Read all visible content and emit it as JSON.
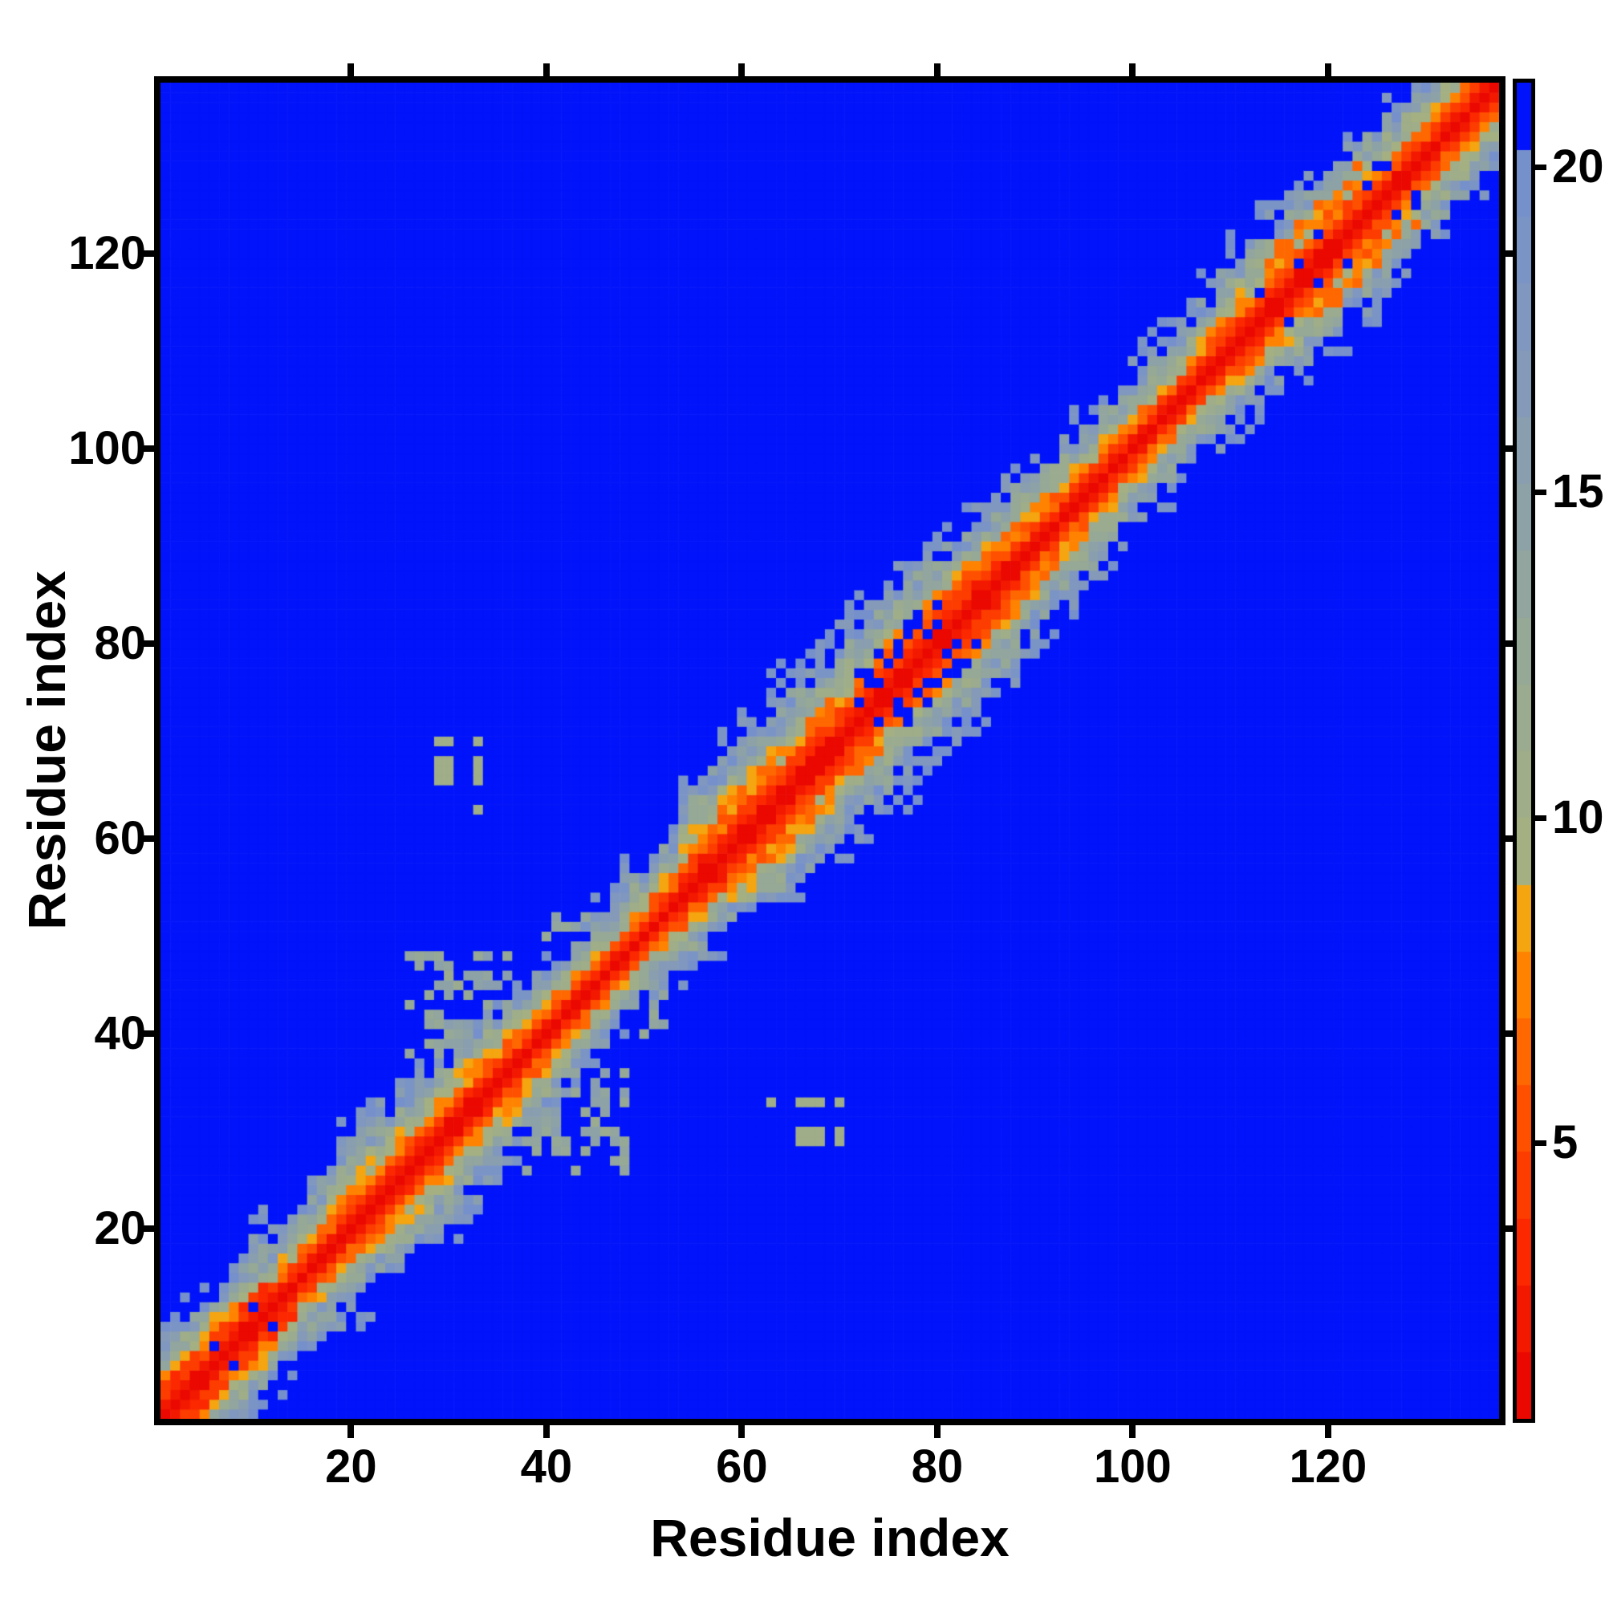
{
  "figure": {
    "background_color": "#ffffff",
    "text_color": "#000000",
    "frame_color": "#000000"
  },
  "chart_data": {
    "type": "heatmap",
    "title": "",
    "xlabel": "Residue index",
    "ylabel": "Residue index",
    "n_residues": 137,
    "axis_range": [
      1,
      137
    ],
    "x_ticks": [
      20,
      40,
      60,
      80,
      100,
      120
    ],
    "y_ticks": [
      20,
      40,
      60,
      80,
      100,
      120
    ],
    "grid": false,
    "legend_position": "colorbar-right",
    "colorbar": {
      "ticks": [
        5,
        10,
        15,
        20
      ],
      "vmin": 0.75,
      "vmax": 21.3,
      "levels": 20
    },
    "colors": {
      "high_distance_background": "#0013fa",
      "diagonal_low": "#e60000",
      "near_diagonal_orange": "#ff8800",
      "mid_sage": "#a3af84",
      "outer_slate": "#7f9abc"
    },
    "colormap_stops": [
      [
        0.75,
        "#e60000"
      ],
      [
        3.2,
        "#fb2600"
      ],
      [
        5.6,
        "#ff5400"
      ],
      [
        7.3,
        "#ff7f00"
      ],
      [
        8.45,
        "#ffa300"
      ],
      [
        8.5,
        "#a9b37c"
      ],
      [
        11.0,
        "#9dac8b"
      ],
      [
        14.0,
        "#90a4a1"
      ],
      [
        17.0,
        "#8399bb"
      ],
      [
        19.9,
        "#7590cd"
      ],
      [
        20.0,
        "#0013fa"
      ],
      [
        21.3,
        "#0013fa"
      ]
    ],
    "matrix_model": {
      "symmetric": true,
      "diagonal_value": 0,
      "clamp_max": 21.3,
      "rate_segments": [
        [
          1,
          11,
          2.1
        ],
        [
          12,
          18,
          2.7
        ],
        [
          19,
          34,
          2.0
        ],
        [
          35,
          43,
          2.45
        ],
        [
          44,
          53,
          3.1
        ],
        [
          54,
          88,
          1.75
        ],
        [
          89,
          97,
          2.3
        ],
        [
          98,
          108,
          2.6
        ],
        [
          109,
          128,
          2.0
        ],
        [
          129,
          137,
          2.35
        ]
      ],
      "noise_base": 0.78,
      "noise_amp": 0.55,
      "clusters": [
        {
          "a": [
            1,
            11
          ],
          "delta": [
            3,
            3
          ],
          "value": 4.0,
          "p": 0.75
        },
        {
          "a": [
            1,
            11
          ],
          "delta": [
            2,
            2
          ],
          "value": 21.3,
          "p": 0.3
        },
        {
          "a": [
            26,
            36
          ],
          "b": [
            38,
            48
          ],
          "value": 13.5,
          "p": 0.38
        },
        {
          "a": [
            40,
            46
          ],
          "b": [
            44,
            52
          ],
          "value": 14.0,
          "p": 0.3
        },
        {
          "a": [
            58,
            70
          ],
          "delta": [
            4,
            5
          ],
          "value": 7.2,
          "p": 0.5
        },
        {
          "a": [
            72,
            80
          ],
          "delta": [
            2,
            5
          ],
          "value": 21.3,
          "p": 0.4
        },
        {
          "a": [
            84,
            90
          ],
          "delta": [
            2,
            4
          ],
          "value": 6.9,
          "p": 0.5
        },
        {
          "a": [
            109,
            126
          ],
          "delta": [
            2,
            4
          ],
          "value": 21.3,
          "p": 0.18
        },
        {
          "a": [
            114,
            123
          ],
          "delta": [
            4,
            6
          ],
          "value": 6.6,
          "p": 0.5
        }
      ],
      "contact_pairs": [
        [
          29,
          66
        ],
        [
          29,
          67
        ],
        [
          29,
          68
        ],
        [
          29,
          70
        ],
        [
          30,
          66
        ],
        [
          30,
          67
        ],
        [
          30,
          68
        ],
        [
          30,
          70
        ],
        [
          33,
          63
        ],
        [
          33,
          66
        ],
        [
          33,
          67
        ],
        [
          33,
          68
        ],
        [
          33,
          70
        ]
      ],
      "contact_value": 10.8
    }
  }
}
